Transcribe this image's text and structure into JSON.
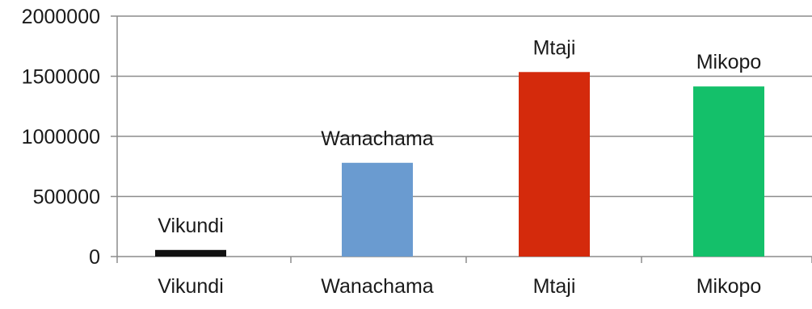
{
  "chart_data": {
    "type": "bar",
    "title": "",
    "xlabel": "",
    "ylabel": "",
    "categories": [
      "Vikundi",
      "Wanachama",
      "Mtaji",
      "Mikopo"
    ],
    "values": [
      55000,
      780000,
      1535000,
      1415000
    ],
    "data_labels": [
      "Vikundi",
      "Wanachama",
      "Mtaji",
      "Mikopo"
    ],
    "ylim": [
      0,
      2000000
    ],
    "yticks": [
      0,
      500000,
      1000000,
      1500000,
      2000000
    ],
    "ytick_labels": [
      "0",
      "500000",
      "1000000",
      "1500000",
      "2000000"
    ],
    "colors": [
      "#111111",
      "#6a9bd0",
      "#d42a0c",
      "#14c06a"
    ],
    "grid": true,
    "legend": "none"
  }
}
